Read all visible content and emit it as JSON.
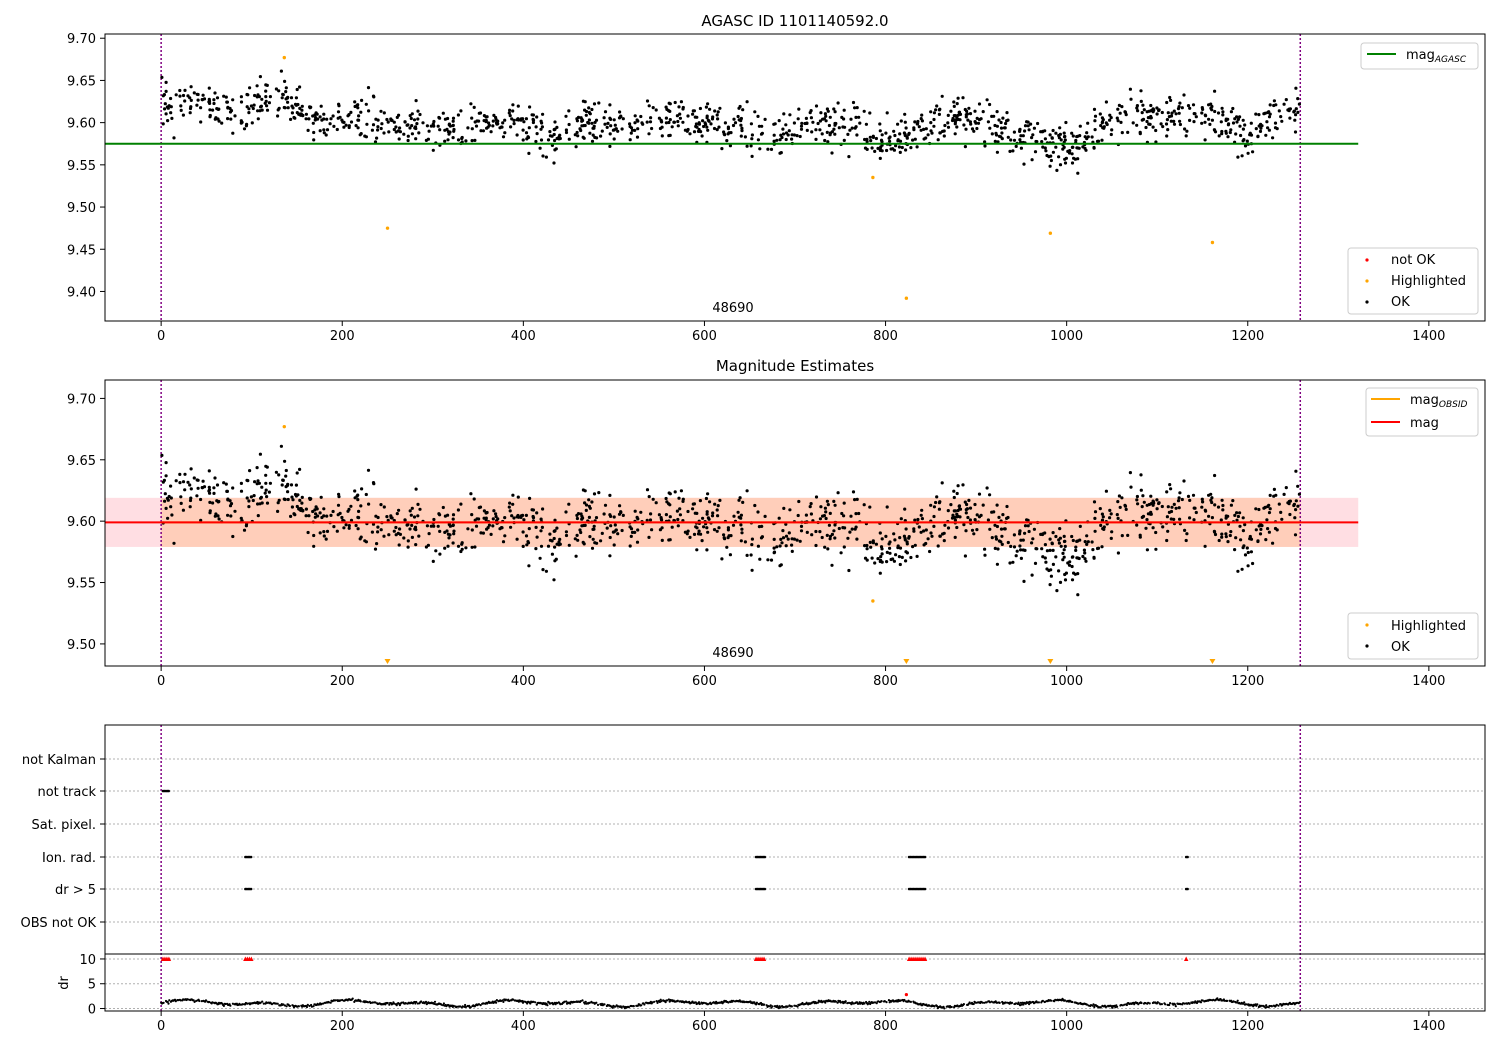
{
  "chart_data": [
    {
      "type": "scatter",
      "title": "AGASC ID 1101140592.0",
      "obsid_label": "48690",
      "ylim": [
        9.365,
        9.705
      ],
      "xlim": [
        -62,
        1462
      ],
      "x_ticks": [
        0,
        200,
        400,
        600,
        800,
        1000,
        1200,
        1400
      ],
      "y_ticks": [
        9.4,
        9.45,
        9.5,
        9.55,
        9.6,
        9.65,
        9.7
      ],
      "y_tick_labels": [
        "9.40",
        "9.45",
        "9.50",
        "9.55",
        "9.60",
        "9.65",
        "9.70"
      ],
      "x_tick_labels": [
        "0",
        "200",
        "400",
        "600",
        "800",
        "1000",
        "1200",
        "1400"
      ],
      "vlines": [
        0,
        1258
      ],
      "mag_agasc": {
        "value": 9.575,
        "x_range": [
          -62,
          1322
        ],
        "color": "#008000"
      },
      "legend_top": [
        {
          "label": "mag",
          "sub": "AGASC",
          "color": "#008000"
        }
      ],
      "legend_bottom": [
        {
          "label": "not OK",
          "color": "#ff0000"
        },
        {
          "label": "Highlighted",
          "color": "#ffa500"
        },
        {
          "label": "OK",
          "color": "#000000"
        }
      ],
      "highlighted": [
        {
          "x": 136,
          "y": 9.677
        },
        {
          "x": 250,
          "y": 9.475
        },
        {
          "x": 786,
          "y": 9.535
        },
        {
          "x": 823,
          "y": 9.392
        },
        {
          "x": 982,
          "y": 9.469
        },
        {
          "x": 1161,
          "y": 9.458
        }
      ],
      "ok_trend": [
        [
          0,
          9.62
        ],
        [
          25,
          9.628
        ],
        [
          55,
          9.62
        ],
        [
          80,
          9.608
        ],
        [
          110,
          9.628
        ],
        [
          140,
          9.622
        ],
        [
          175,
          9.6
        ],
        [
          215,
          9.605
        ],
        [
          260,
          9.598
        ],
        [
          300,
          9.59
        ],
        [
          345,
          9.595
        ],
        [
          390,
          9.602
        ],
        [
          430,
          9.58
        ],
        [
          470,
          9.598
        ],
        [
          510,
          9.592
        ],
        [
          560,
          9.605
        ],
        [
          600,
          9.6
        ],
        [
          640,
          9.598
        ],
        [
          670,
          9.582
        ],
        [
          710,
          9.595
        ],
        [
          750,
          9.6
        ],
        [
          790,
          9.58
        ],
        [
          830,
          9.588
        ],
        [
          860,
          9.603
        ],
        [
          900,
          9.608
        ],
        [
          935,
          9.585
        ],
        [
          975,
          9.575
        ],
        [
          1010,
          9.57
        ],
        [
          1040,
          9.598
        ],
        [
          1080,
          9.608
        ],
        [
          1130,
          9.612
        ],
        [
          1170,
          9.6
        ],
        [
          1200,
          9.585
        ],
        [
          1230,
          9.612
        ],
        [
          1258,
          9.615
        ]
      ],
      "ok_scatter": 0.017
    },
    {
      "type": "scatter",
      "title": "Magnitude Estimates",
      "obsid_label": "48690",
      "ylim": [
        9.482,
        9.715
      ],
      "xlim": [
        -62,
        1462
      ],
      "x_ticks": [
        0,
        200,
        400,
        600,
        800,
        1000,
        1200,
        1400
      ],
      "y_ticks": [
        9.5,
        9.55,
        9.6,
        9.65,
        9.7
      ],
      "y_tick_labels": [
        "9.50",
        "9.55",
        "9.60",
        "9.65",
        "9.70"
      ],
      "x_tick_labels": [
        "0",
        "200",
        "400",
        "600",
        "800",
        "1000",
        "1200",
        "1400"
      ],
      "vlines": [
        0,
        1258
      ],
      "mag": {
        "value": 9.599,
        "x_range": [
          -62,
          1322
        ],
        "color": "#ff0000"
      },
      "mag_obsid": {
        "value": 9.599,
        "x_range": [
          0,
          1258
        ],
        "color": "#ffa500"
      },
      "band_outer": {
        "low": 9.579,
        "high": 9.619,
        "x_range": [
          -62,
          1322
        ],
        "color": "#ffb6c1"
      },
      "band_inner": {
        "low": 9.579,
        "high": 9.619,
        "x_range": [
          0,
          1258
        ],
        "color": "#ffc8a8"
      },
      "legend_top": [
        {
          "label": "mag",
          "sub": "OBSID",
          "color": "#ffa500"
        },
        {
          "label": "mag",
          "sub": "",
          "color": "#ff0000"
        }
      ],
      "legend_bottom": [
        {
          "label": "Highlighted",
          "color": "#ffa500"
        },
        {
          "label": "OK",
          "color": "#000000"
        }
      ],
      "highlighted": [
        {
          "x": 136,
          "y": 9.677
        },
        {
          "x": 786,
          "y": 9.535
        }
      ],
      "off_scale_markers": [
        250,
        823,
        982,
        1161
      ]
    },
    {
      "type": "scatter",
      "categories": [
        "not Kalman",
        "not track",
        "Sat. pixel.",
        "Ion. rad.",
        "dr > 5",
        "OBS not OK"
      ],
      "flag_points": {
        "not track": [
          [
            2,
            9
          ]
        ],
        "Ion. rad.": [
          [
            93,
            100
          ],
          [
            657,
            668
          ],
          [
            826,
            844
          ],
          [
            1132,
            1134
          ]
        ],
        "dr > 5": [
          [
            93,
            100
          ],
          [
            657,
            668
          ],
          [
            826,
            844
          ],
          [
            1132,
            1134
          ]
        ]
      },
      "dr_ylabel": "dr",
      "dr_ylim": [
        -0.5,
        11
      ],
      "dr_y_ticks": [
        0,
        5,
        10
      ],
      "dr_y_tick_labels": [
        "0",
        "5",
        "10"
      ],
      "x_ticks": [
        0,
        200,
        400,
        600,
        800,
        1000,
        1200,
        1400
      ],
      "x_tick_labels": [
        "0",
        "200",
        "400",
        "600",
        "800",
        "1000",
        "1200",
        "1400"
      ],
      "vlines": [
        0,
        1258
      ],
      "dr_high_marks": [
        [
          2,
          9
        ],
        [
          93,
          100
        ],
        [
          657,
          668
        ],
        [
          826,
          844
        ],
        [
          1132,
          1134
        ]
      ],
      "dr_outlier": {
        "x": 823,
        "y": 2.8
      }
    }
  ]
}
